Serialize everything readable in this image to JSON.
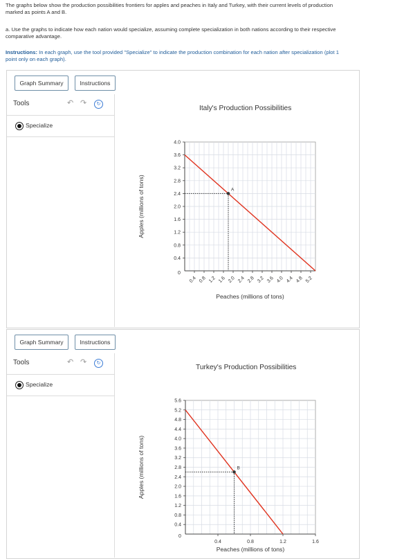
{
  "intro": {
    "line1": "The graphs below show the production possibilities frontiers for apples and peaches in Italy and Turkey, with their current levels of production",
    "line2": "marked as points A and B.",
    "part_a_1": "a. Use the graphs to indicate how each nation would specialize, assuming complete specialization in both nations according to their respective",
    "part_a_2": "comparative advantage.",
    "instr_bold": "Instructions:",
    "instr_rest": " In each graph, use the tool provided \"Specialize\" to indicate the production combination for each nation after specialization (plot 1",
    "instr_2": "point only on each graph)."
  },
  "panels": [
    {
      "tabs": {
        "summary": "Graph Summary",
        "instructions": "Instructions"
      },
      "tools_label": "Tools",
      "tool_label": "Specialize",
      "icons": {
        "undo": "undo-icon",
        "redo": "redo-icon",
        "reset": "reset-icon",
        "radio": "radio-selected-icon"
      }
    },
    {
      "tabs": {
        "summary": "Graph Summary",
        "instructions": "Instructions"
      },
      "tools_label": "Tools",
      "tool_label": "Specialize",
      "icons": {
        "undo": "undo-icon",
        "redo": "redo-icon",
        "reset": "reset-icon",
        "radio": "radio-selected-icon"
      }
    }
  ],
  "chart_data": [
    {
      "type": "line",
      "title": "Italy's Production Possibilities",
      "xlabel": "Peaches (millions of tons)",
      "ylabel": "Apples (millions of tons)",
      "xlim": [
        0,
        5.4
      ],
      "ylim": [
        0,
        4.0
      ],
      "x_ticks": [
        "0.4",
        "0.8",
        "1.2",
        "1.6",
        "2.0",
        "2.4",
        "2.8",
        "3.2",
        "3.6",
        "4.0",
        "4.4",
        "4.8",
        "5.2"
      ],
      "y_ticks": [
        "0.4",
        "0.8",
        "1.2",
        "1.6",
        "2.0",
        "2.4",
        "2.8",
        "3.2",
        "3.6",
        "4.0"
      ],
      "origin_label": "0",
      "x_tick_labels_rotated": true,
      "grid": true,
      "frontier": {
        "x": [
          0,
          5.4
        ],
        "y": [
          3.6,
          0
        ],
        "color": "#e0331f"
      },
      "point": {
        "label": "A",
        "x": 1.8,
        "y": 2.4
      }
    },
    {
      "type": "line",
      "title": "Turkey's Production Possibilities",
      "xlabel": "Peaches (millions of tons)",
      "ylabel": "Apples (millions of tons)",
      "xlim": [
        0,
        1.6
      ],
      "ylim": [
        0,
        5.6
      ],
      "x_ticks": [
        "0.4",
        "0.8",
        "1.2",
        "1.6"
      ],
      "y_ticks": [
        "0.4",
        "0.8",
        "1.2",
        "1.6",
        "2.0",
        "2.4",
        "2.8",
        "3.2",
        "3.6",
        "4.0",
        "4.4",
        "4.8",
        "5.2",
        "5.6"
      ],
      "origin_label": "0",
      "x_tick_labels_rotated": false,
      "grid": true,
      "frontier": {
        "x": [
          0,
          1.2
        ],
        "y": [
          5.2,
          0
        ],
        "color": "#e0331f"
      },
      "point": {
        "label": "B",
        "x": 0.6,
        "y": 2.6
      }
    }
  ]
}
